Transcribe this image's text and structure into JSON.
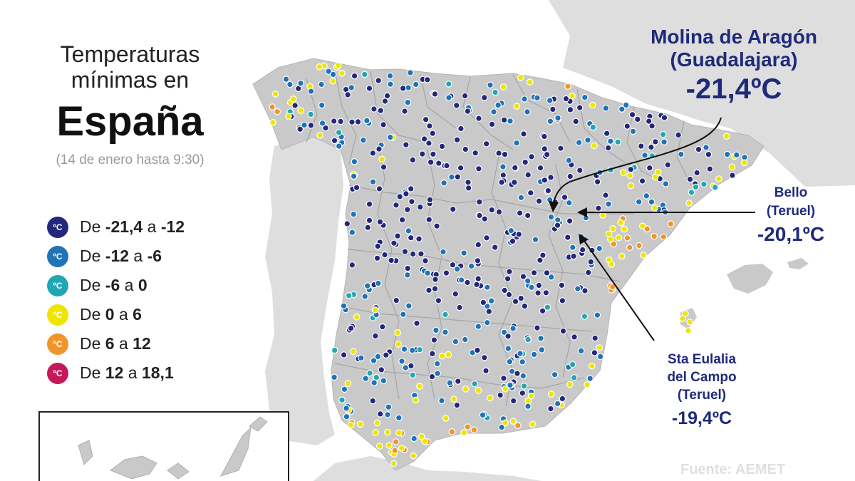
{
  "header": {
    "title_line1": "Temperaturas",
    "title_line2": "mínimas en",
    "title_main": "España",
    "subtitle": "(14 de enero hasta 9:30)"
  },
  "legend": {
    "icon_text": "ºC",
    "items": [
      {
        "prefix": "De ",
        "from": "-21,4",
        "sep": " a ",
        "to": "-12",
        "color": "#24287c"
      },
      {
        "prefix": "De ",
        "from": "-12",
        "sep": " a ",
        "to": "-6",
        "color": "#1f73b6"
      },
      {
        "prefix": "De ",
        "from": "-6",
        "sep": " a ",
        "to": "0",
        "color": "#22a6b3"
      },
      {
        "prefix": "De ",
        "from": "0",
        "sep": " a ",
        "to": "6",
        "color": "#ece600"
      },
      {
        "prefix": "De ",
        "from": "6",
        "sep": " a ",
        "to": "12",
        "color": "#ef952c"
      },
      {
        "prefix": "De ",
        "from": "12",
        "sep": " a ",
        "to": "18,1",
        "color": "#c4185a"
      }
    ]
  },
  "callouts": {
    "molina": {
      "line1": "Molina de Aragón",
      "line2": "(Guadalajara)",
      "value": "-21,4ºC"
    },
    "bello": {
      "line1": "Bello",
      "line2": "(Teruel)",
      "value": "-20,1ºC"
    },
    "eulalia": {
      "line1": "Sta Eulalia",
      "line2": "del Campo",
      "line3": "(Teruel)",
      "value": "-19,4ºC"
    }
  },
  "source": "Fuente: AEMET",
  "map_colors": {
    "land": "#dedede",
    "spain": "#c9c9c9",
    "borders": "#a7a7a7",
    "sea": "#ffffff",
    "callout_text": "#1f2a7a"
  }
}
